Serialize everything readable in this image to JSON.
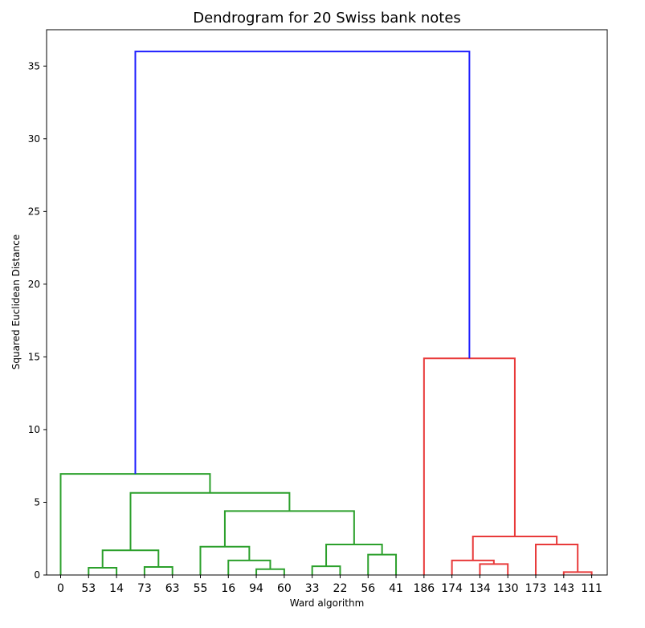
{
  "chart_data": {
    "type": "dendrogram",
    "title": "Dendrogram for 20 Swiss bank notes",
    "xlabel": "Ward algorithm",
    "ylabel": "Squared Euclidean Distance",
    "ylim": [
      0,
      37.5
    ],
    "yticks": [
      0,
      5,
      10,
      15,
      20,
      25,
      30,
      35
    ],
    "leaves": [
      "0",
      "53",
      "14",
      "73",
      "63",
      "55",
      "16",
      "94",
      "60",
      "33",
      "22",
      "56",
      "41",
      "186",
      "174",
      "134",
      "130",
      "173",
      "143",
      "111"
    ],
    "colors": {
      "green": "#2ca02c",
      "red": "#e83a3a",
      "blue": "#1f1fff"
    },
    "merges": [
      {
        "left": "53",
        "right": "14",
        "height": 0.5,
        "color": "green"
      },
      {
        "left": "73",
        "right": "63",
        "height": 0.55,
        "color": "green"
      },
      {
        "left": "94",
        "right": "60",
        "height": 0.4,
        "color": "green"
      },
      {
        "left": "33",
        "right": "22",
        "height": 0.6,
        "color": "green"
      },
      {
        "left": "56",
        "right": "41",
        "height": 1.4,
        "color": "green"
      },
      {
        "left": "134",
        "right": "130",
        "height": 0.75,
        "color": "red"
      },
      {
        "left": "143",
        "right": "111",
        "height": 0.2,
        "color": "red"
      },
      {
        "left": "C1",
        "right": "C2",
        "height": 1.7,
        "color": "green"
      },
      {
        "left": "16",
        "right": "C3",
        "height": 1.0,
        "color": "green"
      },
      {
        "left": "C4",
        "right": "C5",
        "height": 2.1,
        "color": "green"
      },
      {
        "left": "174",
        "right": "C6",
        "height": 1.0,
        "color": "red"
      },
      {
        "left": "173",
        "right": "C7",
        "height": 2.1,
        "color": "red"
      },
      {
        "left": "55",
        "right": "C9",
        "height": 1.95,
        "color": "green"
      },
      {
        "left": "C11",
        "right": "C12",
        "height": 2.65,
        "color": "red"
      },
      {
        "left": "C13",
        "right": "C10",
        "height": 4.4,
        "color": "green"
      },
      {
        "left": "C8",
        "right": "C15",
        "height": 5.65,
        "color": "green"
      },
      {
        "left": "186",
        "right": "C14",
        "height": 14.9,
        "color": "red"
      },
      {
        "left": "0",
        "right": "C16",
        "height": 6.95,
        "color": "green"
      },
      {
        "left": "C18",
        "right": "C17",
        "height": 36.0,
        "color": "blue"
      }
    ]
  }
}
